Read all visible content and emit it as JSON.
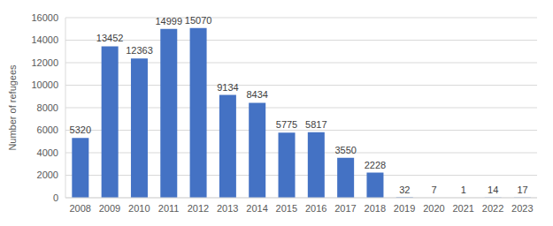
{
  "chart_data": {
    "type": "bar",
    "y_label": "Number of refugees",
    "categories": [
      "2008",
      "2009",
      "2010",
      "2011",
      "2012",
      "2013",
      "2014",
      "2015",
      "2016",
      "2017",
      "2018",
      "2019",
      "2020",
      "2021",
      "2022",
      "2023"
    ],
    "values": [
      5320,
      13452,
      12363,
      14999,
      15070,
      9134,
      8434,
      5775,
      5817,
      3550,
      2228,
      32,
      7,
      1,
      14,
      17
    ],
    "color": "#4472c4",
    "ylim": [
      0,
      16000
    ],
    "yticks": [
      0,
      2000,
      4000,
      6000,
      8000,
      10000,
      12000,
      14000,
      16000
    ],
    "grid": true,
    "data_labels": true
  }
}
